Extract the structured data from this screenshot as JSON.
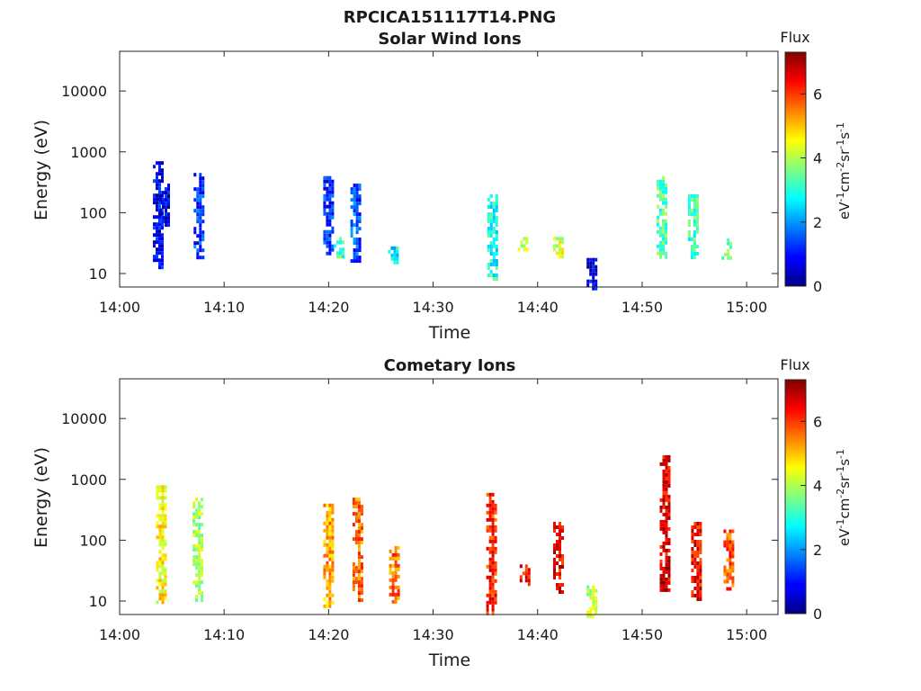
{
  "figure_title": "RPCICA151117T14.PNG",
  "chart_data": [
    {
      "type": "heatmap",
      "title": "Solar Wind Ions",
      "xlabel": "Time",
      "ylabel": "Energy (eV)",
      "y_scale": "log",
      "x_range": [
        "14:00",
        "15:03"
      ],
      "ylim": [
        6,
        45000
      ],
      "x_ticks": [
        "14:00",
        "14:10",
        "14:20",
        "14:30",
        "14:40",
        "14:50",
        "15:00"
      ],
      "y_ticks": [
        "10",
        "100",
        "1000",
        "10000"
      ],
      "colorbar": {
        "title": "Flux",
        "unit": "eV-1cm-2sr-1s-1",
        "range": [
          0,
          7.3
        ],
        "ticks": [
          "0",
          "2",
          "4",
          "6"
        ],
        "colormap": "jet"
      },
      "clusters": [
        {
          "t": "14:03.7",
          "e_lo": 12,
          "e_hi": 700,
          "flux": 0.9
        },
        {
          "t": "14:04.3",
          "e_lo": 60,
          "e_hi": 300,
          "flux": 0.8
        },
        {
          "t": "14:07.6",
          "e_lo": 18,
          "e_hi": 450,
          "flux": 1.3
        },
        {
          "t": "14:20.0",
          "e_lo": 20,
          "e_hi": 400,
          "flux": 1.2
        },
        {
          "t": "14:21.0",
          "e_lo": 20,
          "e_hi": 40,
          "flux": 3.2
        },
        {
          "t": "14:22.6",
          "e_lo": 15,
          "e_hi": 300,
          "flux": 1.5
        },
        {
          "t": "14:26.2",
          "e_lo": 15,
          "e_hi": 28,
          "flux": 2.6
        },
        {
          "t": "14:35.7",
          "e_lo": 8,
          "e_hi": 200,
          "flux": 2.9
        },
        {
          "t": "14:38.6",
          "e_lo": 25,
          "e_hi": 40,
          "flux": 4.2
        },
        {
          "t": "14:42.0",
          "e_lo": 18,
          "e_hi": 40,
          "flux": 4.3
        },
        {
          "t": "14:45.2",
          "e_lo": 6,
          "e_hi": 18,
          "flux": 0.7
        },
        {
          "t": "14:51.9",
          "e_lo": 18,
          "e_hi": 400,
          "flux": 3.4
        },
        {
          "t": "14:54.9",
          "e_lo": 18,
          "e_hi": 200,
          "flux": 3.2
        },
        {
          "t": "14:58.1",
          "e_lo": 18,
          "e_hi": 38,
          "flux": 3.4
        }
      ]
    },
    {
      "type": "heatmap",
      "title": "Cometary Ions",
      "xlabel": "Time",
      "ylabel": "Energy (eV)",
      "y_scale": "log",
      "x_range": [
        "14:00",
        "15:03"
      ],
      "ylim": [
        6,
        45000
      ],
      "x_ticks": [
        "14:00",
        "14:10",
        "14:20",
        "14:30",
        "14:40",
        "14:50",
        "15:00"
      ],
      "y_ticks": [
        "10",
        "100",
        "1000",
        "10000"
      ],
      "colorbar": {
        "title": "Flux",
        "unit": "eV-1cm-2sr-1s-1",
        "range": [
          0,
          7.3
        ],
        "ticks": [
          "0",
          "2",
          "4",
          "6"
        ],
        "colormap": "jet"
      },
      "clusters": [
        {
          "t": "14:04.0",
          "e_lo": 10,
          "e_hi": 800,
          "flux": 4.6
        },
        {
          "t": "14:07.5",
          "e_lo": 10,
          "e_hi": 500,
          "flux": 4.0
        },
        {
          "t": "14:20.0",
          "e_lo": 8,
          "e_hi": 400,
          "flux": 5.2
        },
        {
          "t": "14:22.8",
          "e_lo": 10,
          "e_hi": 500,
          "flux": 5.6
        },
        {
          "t": "14:26.3",
          "e_lo": 10,
          "e_hi": 80,
          "flux": 5.6
        },
        {
          "t": "14:35.6",
          "e_lo": 6,
          "e_hi": 600,
          "flux": 6.1
        },
        {
          "t": "14:38.8",
          "e_lo": 18,
          "e_hi": 40,
          "flux": 6.4
        },
        {
          "t": "14:42.0",
          "e_lo": 15,
          "e_hi": 200,
          "flux": 6.4
        },
        {
          "t": "14:45.2",
          "e_lo": 6,
          "e_hi": 18,
          "flux": 4.0
        },
        {
          "t": "14:52.2",
          "e_lo": 15,
          "e_hi": 2500,
          "flux": 6.6
        },
        {
          "t": "14:55.2",
          "e_lo": 10,
          "e_hi": 200,
          "flux": 6.4
        },
        {
          "t": "14:58.3",
          "e_lo": 15,
          "e_hi": 150,
          "flux": 5.8
        }
      ]
    }
  ]
}
